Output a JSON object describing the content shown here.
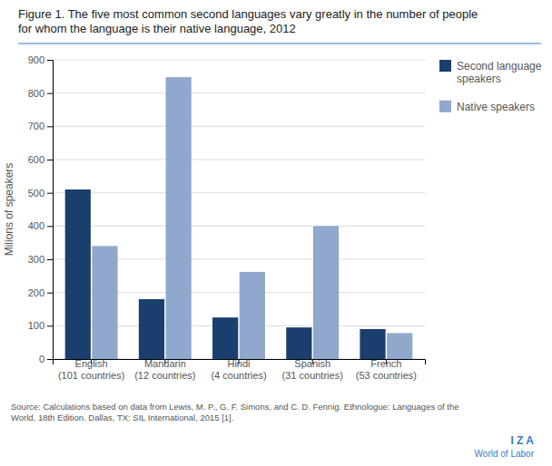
{
  "chart_data": {
    "type": "bar",
    "title": "Figure 1. The five most common second languages vary greatly in the number of people\nfor whom the language is their native language, 2012",
    "categories": [
      "English\n(101 countries)",
      "Mandarin\n(12 countries)",
      "Hindi\n(4 countries)",
      "Spanish\n(31 countries)",
      "French\n(53 countries)"
    ],
    "series": [
      {
        "name": "Second language\nspeakers",
        "color": "#1a3f6f",
        "values": [
          510,
          180,
          125,
          95,
          90
        ]
      },
      {
        "name": "Native speakers",
        "color": "#8fa8cc",
        "values": [
          340,
          848,
          262,
          400,
          78
        ]
      }
    ],
    "ylabel": "Milions of speakers",
    "ylim": [
      0,
      900
    ],
    "yticks": [
      0,
      100,
      200,
      300,
      400,
      500,
      600,
      700,
      800,
      900
    ],
    "grid": true,
    "legend": "right",
    "annotations": [
      "Source: Calculations based on data from Lewis, M. P., G. F. Simons, and C. D. Fennig. Ethnologue: Languages of the\nWorld, 18th Edition. Dallas, TX: SIL International, 2015 [1].",
      "I  Z  A",
      "World of Labor"
    ]
  }
}
